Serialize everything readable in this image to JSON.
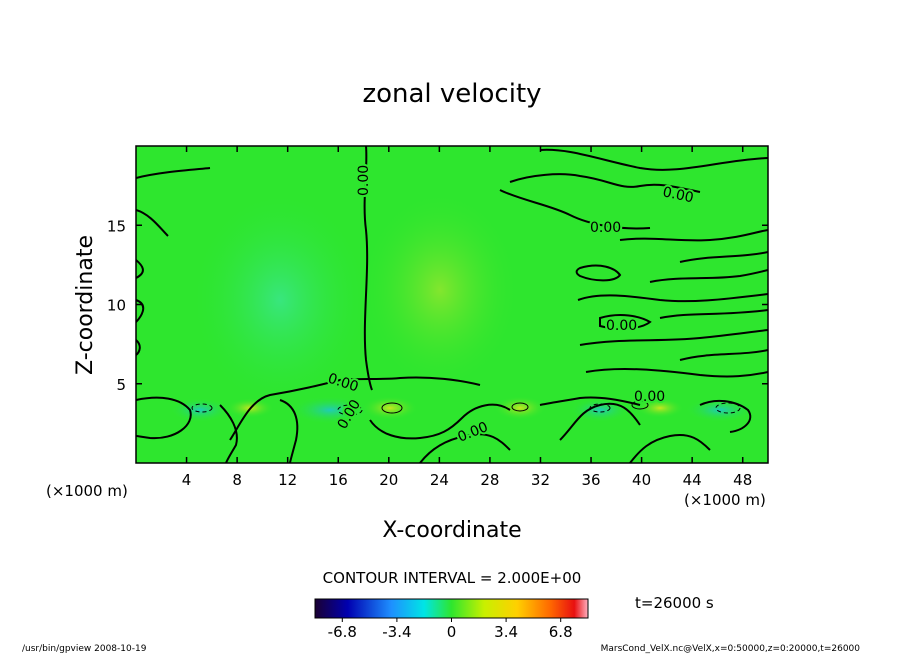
{
  "chart_data": {
    "type": "contour",
    "title": "zonal velocity",
    "xlabel": "X-coordinate",
    "ylabel": "Z-coordinate",
    "x_unit": "(×1000 m)",
    "y_unit": "(×1000 m)",
    "xlim": [
      0,
      50
    ],
    "ylim": [
      0,
      20
    ],
    "x_ticks": [
      4,
      8,
      12,
      16,
      20,
      24,
      28,
      32,
      36,
      40,
      44,
      48
    ],
    "y_ticks": [
      5,
      10,
      15
    ],
    "contour_labels": [
      "0.00",
      "0.00",
      "0.00",
      "0.00",
      "0.00",
      "0.00",
      "0.00",
      "0.00"
    ],
    "contour_interval": "CONTOUR INTERVAL = 2.000E+00",
    "time_label": "t=26000 s",
    "colorbar_range": [
      -8.5,
      8.5
    ],
    "colorbar_ticks": [
      "-6.8",
      "-3.4",
      "0",
      "3.4",
      "6.8"
    ],
    "colors": {
      "background_field": "#2ee62e",
      "contour_line": "#000000"
    }
  },
  "footer": {
    "left": "/usr/bin/gpview   2008-10-19",
    "right": "MarsCond_VelX.nc@VelX,x=0:50000,z=0:20000,t=26000"
  }
}
